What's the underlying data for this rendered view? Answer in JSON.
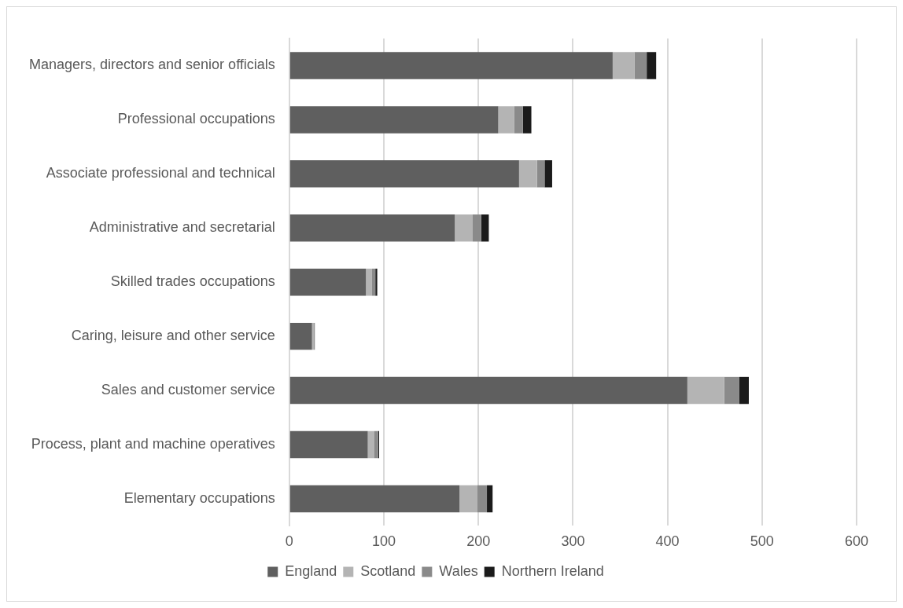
{
  "chart_data": {
    "type": "bar",
    "orientation": "horizontal",
    "stacked": true,
    "categories": [
      "Managers, directors and senior officials",
      "Professional occupations",
      "Associate professional and technical",
      "Administrative and secretarial",
      "Skilled trades occupations",
      "Caring, leisure and other service",
      "Sales and customer service",
      "Process, plant and machine operatives",
      "Elementary occupations"
    ],
    "series": [
      {
        "name": "England",
        "color": "#5f5f5f",
        "values": [
          342,
          221,
          243,
          175,
          81,
          24,
          421,
          83,
          180
        ]
      },
      {
        "name": "Scotland",
        "color": "#b4b4b4",
        "values": [
          23,
          17,
          19,
          19,
          6,
          2,
          39,
          7,
          19
        ]
      },
      {
        "name": "Wales",
        "color": "#8a8a8a",
        "values": [
          13,
          9,
          8,
          9,
          4,
          1,
          16,
          4,
          10
        ]
      },
      {
        "name": "Northern Ireland",
        "color": "#1b1b1b",
        "values": [
          10,
          9,
          8,
          8,
          2,
          0,
          10,
          1,
          6
        ]
      }
    ],
    "xlim": [
      0,
      600
    ],
    "xticks": [
      0,
      100,
      200,
      300,
      400,
      500,
      600
    ],
    "grid": "x",
    "legend": "bottom"
  }
}
